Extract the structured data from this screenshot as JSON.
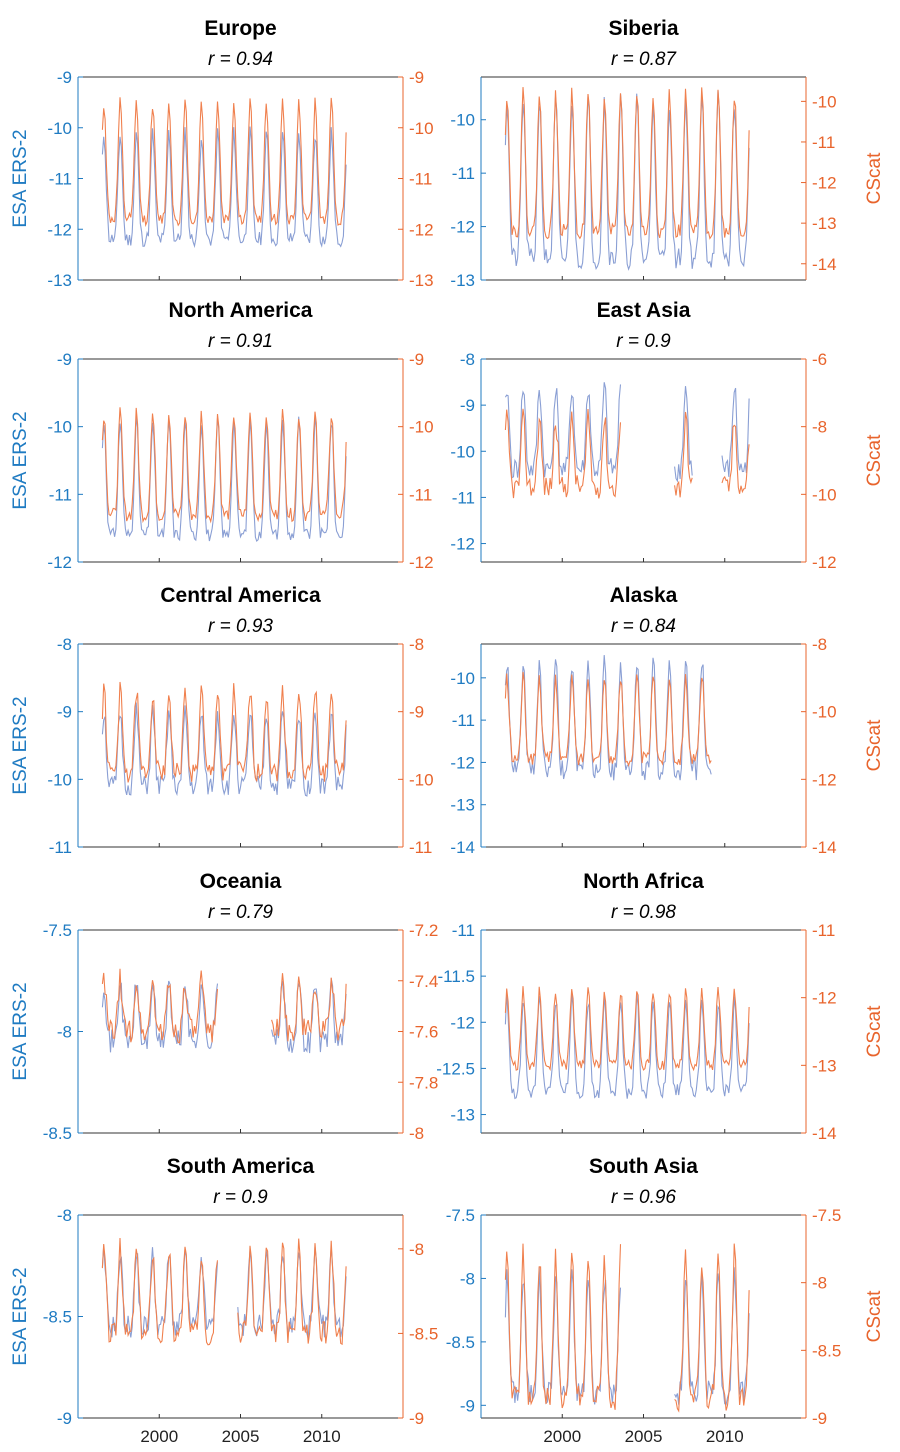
{
  "figure": {
    "left_color": "#1f7bc2",
    "right_color": "#e8642c",
    "esa_line_color": "#8a9fd4",
    "cscat_line_color": "#f0804e",
    "x_tick_labels": [
      "2000",
      "2005",
      "2010"
    ],
    "x_range": [
      1995,
      2015
    ]
  },
  "chart_data": [
    {
      "type": "line",
      "title": "Europe",
      "subtitle": "r = 0.94",
      "ylabel": "ESA ERS-2",
      "y2label": "",
      "ylim": [
        -13,
        -9
      ],
      "y2lim": [
        -13,
        -9
      ],
      "yticks": [
        -13,
        -12,
        -11,
        -10,
        -9
      ],
      "y2ticks": [
        -13,
        -12,
        -11,
        -10,
        -9
      ],
      "ytick_labels": [
        "-13",
        "-12",
        "-11",
        "-10",
        "-9"
      ],
      "y2tick_labels": [
        "-13",
        "-12",
        "-11",
        "-10",
        "-9"
      ],
      "show_xticklabels": false,
      "series": [
        {
          "axis": "left",
          "seasonal": {
            "start": 1996.5,
            "end": 2011.5,
            "low": -12.2,
            "high": -10.1,
            "noise": 0.15,
            "seed": 11
          }
        },
        {
          "axis": "right",
          "seasonal": {
            "start": 1996.5,
            "end": 2011.5,
            "low": -11.8,
            "high": -9.5,
            "noise": 0.12,
            "seed": 12
          }
        }
      ]
    },
    {
      "type": "line",
      "title": "Siberia",
      "subtitle": "r = 0.87",
      "ylabel": "",
      "y2label": "CScat",
      "ylim": [
        -13,
        -9.2
      ],
      "y2lim": [
        -14.4,
        -9.4
      ],
      "yticks": [
        -13,
        -12,
        -11,
        -10
      ],
      "y2ticks": [
        -14,
        -13,
        -12,
        -11,
        -10
      ],
      "ytick_labels": [
        "-13",
        "-12",
        "-11",
        "-10"
      ],
      "y2tick_labels": [
        "-14",
        "-13",
        "-12",
        "-11",
        "-10"
      ],
      "show_xticklabels": false,
      "series": [
        {
          "axis": "left",
          "seasonal": {
            "start": 1996.5,
            "end": 2011.5,
            "low": -12.6,
            "high": -9.6,
            "noise": 0.2,
            "seed": 21
          }
        },
        {
          "axis": "right",
          "seasonal": {
            "start": 1996.5,
            "end": 2011.5,
            "low": -13.2,
            "high": -9.8,
            "noise": 0.18,
            "seed": 22
          }
        }
      ]
    },
    {
      "type": "line",
      "title": "North America",
      "subtitle": "r = 0.91",
      "ylabel": "ESA ERS-2",
      "y2label": "",
      "ylim": [
        -12,
        -9
      ],
      "y2lim": [
        -12,
        -9
      ],
      "yticks": [
        -12,
        -11,
        -10,
        -9
      ],
      "y2ticks": [
        -12,
        -11,
        -10,
        -9
      ],
      "ytick_labels": [
        "-12",
        "-11",
        "-10",
        "-9"
      ],
      "y2tick_labels": [
        "-12",
        "-11",
        "-10",
        "-9"
      ],
      "show_xticklabels": false,
      "series": [
        {
          "axis": "left",
          "seasonal": {
            "start": 1996.5,
            "end": 2011.5,
            "low": -11.6,
            "high": -9.9,
            "noise": 0.1,
            "seed": 31
          }
        },
        {
          "axis": "right",
          "seasonal": {
            "start": 1996.5,
            "end": 2011.5,
            "low": -11.3,
            "high": -9.8,
            "noise": 0.1,
            "seed": 32
          }
        }
      ]
    },
    {
      "type": "line",
      "title": "East Asia",
      "subtitle": "r = 0.9",
      "ylabel": "",
      "y2label": "CScat",
      "ylim": [
        -12.4,
        -8
      ],
      "y2lim": [
        -12,
        -6
      ],
      "yticks": [
        -12,
        -11,
        -10,
        -9,
        -8
      ],
      "y2ticks": [
        -12,
        -10,
        -8,
        -6
      ],
      "ytick_labels": [
        "-12",
        "-11",
        "-10",
        "-9",
        "-8"
      ],
      "y2tick_labels": [
        "-12",
        "-10",
        "-8",
        "-6"
      ],
      "show_xticklabels": false,
      "series": [
        {
          "axis": "left",
          "seasonal": {
            "start": 1996.5,
            "end": 2011.5,
            "low": -10.4,
            "high": -8.6,
            "noise": 0.25,
            "seed": 41,
            "gaps": [
              [
                2003.6,
                2006.9
              ],
              [
                2008.0,
                2009.8
              ]
            ]
          }
        },
        {
          "axis": "right",
          "seasonal": {
            "start": 1996.5,
            "end": 2011.5,
            "low": -9.8,
            "high": -7.8,
            "noise": 0.35,
            "seed": 42,
            "gaps": [
              [
                2003.6,
                2006.9
              ],
              [
                2008.0,
                2009.8
              ]
            ]
          }
        }
      ]
    },
    {
      "type": "line",
      "title": "Central America",
      "subtitle": "r = 0.93",
      "ylabel": "ESA ERS-2",
      "y2label": "",
      "ylim": [
        -11,
        -8
      ],
      "y2lim": [
        -11,
        -8
      ],
      "yticks": [
        -11,
        -10,
        -9,
        -8
      ],
      "y2ticks": [
        -11,
        -10,
        -9,
        -8
      ],
      "ytick_labels": [
        "-11",
        "-10",
        "-9",
        "-8"
      ],
      "y2tick_labels": [
        "-11",
        "-10",
        "-9",
        "-8"
      ],
      "show_xticklabels": false,
      "series": [
        {
          "axis": "left",
          "seasonal": {
            "start": 1996.5,
            "end": 2011.5,
            "low": -10.1,
            "high": -9.0,
            "noise": 0.15,
            "seed": 51
          }
        },
        {
          "axis": "right",
          "seasonal": {
            "start": 1996.5,
            "end": 2011.5,
            "low": -9.9,
            "high": -8.7,
            "noise": 0.15,
            "seed": 52
          }
        }
      ]
    },
    {
      "type": "line",
      "title": "Alaska",
      "subtitle": "r = 0.84",
      "ylabel": "",
      "y2label": "CScat",
      "ylim": [
        -14,
        -9.2
      ],
      "y2lim": [
        -14,
        -8
      ],
      "yticks": [
        -14,
        -13,
        -12,
        -11,
        -10
      ],
      "y2ticks": [
        -14,
        -12,
        -10,
        -8
      ],
      "ytick_labels": [
        "-14",
        "-13",
        "-12",
        "-11",
        "-10"
      ],
      "y2tick_labels": [
        "-14",
        "-12",
        "-10",
        "-8"
      ],
      "show_xticklabels": false,
      "series": [
        {
          "axis": "left",
          "seasonal": {
            "start": 1996.5,
            "end": 2009.2,
            "low": -12.2,
            "high": -9.6,
            "noise": 0.25,
            "seed": 61
          }
        },
        {
          "axis": "right",
          "seasonal": {
            "start": 1996.5,
            "end": 2009.2,
            "low": -11.4,
            "high": -9.0,
            "noise": 0.2,
            "seed": 62
          }
        }
      ]
    },
    {
      "type": "line",
      "title": "Oceania",
      "subtitle": "r = 0.79",
      "ylabel": "ESA ERS-2",
      "y2label": "",
      "ylim": [
        -8.5,
        -7.5
      ],
      "y2lim": [
        -8,
        -7.2
      ],
      "yticks": [
        -8.5,
        -8,
        -7.5
      ],
      "y2ticks": [
        -8,
        -7.8,
        -7.6,
        -7.4,
        -7.2
      ],
      "ytick_labels": [
        "-8.5",
        "-8",
        "-7.5"
      ],
      "y2tick_labels": [
        "-8",
        "-7.8",
        "-7.6",
        "-7.4",
        "-7.2"
      ],
      "show_xticklabels": false,
      "series": [
        {
          "axis": "left",
          "seasonal": {
            "start": 1996.5,
            "end": 2011.5,
            "low": -8.05,
            "high": -7.75,
            "noise": 0.06,
            "seed": 71,
            "gaps": [
              [
                2003.6,
                2006.9
              ]
            ]
          }
        },
        {
          "axis": "right",
          "seasonal": {
            "start": 1996.5,
            "end": 2011.5,
            "low": -7.6,
            "high": -7.4,
            "noise": 0.05,
            "seed": 72,
            "gaps": [
              [
                2003.6,
                2006.9
              ]
            ]
          }
        }
      ]
    },
    {
      "type": "line",
      "title": "North Africa",
      "subtitle": "r = 0.98",
      "ylabel": "",
      "y2label": "CScat",
      "ylim": [
        -13.2,
        -11
      ],
      "y2lim": [
        -14,
        -11
      ],
      "yticks": [
        -13,
        -12.5,
        -12,
        -11.5,
        -11
      ],
      "y2ticks": [
        -14,
        -13,
        -12,
        -11
      ],
      "ytick_labels": [
        "-13",
        "-12.5",
        "-12",
        "-11.5",
        "-11"
      ],
      "y2tick_labels": [
        "-14",
        "-13",
        "-12",
        "-11"
      ],
      "show_xticklabels": false,
      "series": [
        {
          "axis": "left",
          "seasonal": {
            "start": 1996.5,
            "end": 2011.5,
            "low": -12.75,
            "high": -11.75,
            "noise": 0.08,
            "seed": 81
          }
        },
        {
          "axis": "right",
          "seasonal": {
            "start": 1996.5,
            "end": 2011.5,
            "low": -13.0,
            "high": -11.9,
            "noise": 0.08,
            "seed": 82
          }
        }
      ]
    },
    {
      "type": "line",
      "title": "South America",
      "subtitle": "r = 0.9",
      "ylabel": "ESA ERS-2",
      "y2label": "",
      "ylim": [
        -9,
        -8
      ],
      "y2lim": [
        -9,
        -7.8
      ],
      "yticks": [
        -9,
        -8.5,
        -8
      ],
      "y2ticks": [
        -9,
        -8.5,
        -8
      ],
      "ytick_labels": [
        "-9",
        "-8.5",
        "-8"
      ],
      "y2tick_labels": [
        "-9",
        "-8.5",
        "-8"
      ],
      "show_xticklabels": true,
      "series": [
        {
          "axis": "left",
          "seasonal": {
            "start": 1996.5,
            "end": 2011.5,
            "low": -8.55,
            "high": -8.2,
            "noise": 0.06,
            "seed": 91,
            "gaps": [
              [
                2003.6,
                2004.8
              ]
            ]
          }
        },
        {
          "axis": "right",
          "seasonal": {
            "start": 1996.5,
            "end": 2011.5,
            "low": -8.5,
            "high": -8.0,
            "noise": 0.07,
            "seed": 92,
            "gaps": [
              [
                2003.6,
                2004.8
              ]
            ]
          }
        }
      ]
    },
    {
      "type": "line",
      "title": "South Asia",
      "subtitle": "r = 0.96",
      "ylabel": "",
      "y2label": "CScat",
      "ylim": [
        -9.1,
        -7.5
      ],
      "y2lim": [
        -9,
        -7.5
      ],
      "yticks": [
        -9,
        -8.5,
        -8,
        -7.5
      ],
      "y2ticks": [
        -9,
        -8.5,
        -8,
        -7.5
      ],
      "ytick_labels": [
        "-9",
        "-8.5",
        "-8",
        "-7.5"
      ],
      "y2tick_labels": [
        "-9",
        "-8.5",
        "-8",
        "-7.5"
      ],
      "show_xticklabels": true,
      "series": [
        {
          "axis": "left",
          "seasonal": {
            "start": 1996.5,
            "end": 2011.5,
            "low": -8.9,
            "high": -8.0,
            "noise": 0.1,
            "seed": 101,
            "gaps": [
              [
                2003.6,
                2006.9
              ]
            ]
          }
        },
        {
          "axis": "right",
          "seasonal": {
            "start": 1996.5,
            "end": 2011.5,
            "low": -8.85,
            "high": -7.8,
            "noise": 0.1,
            "seed": 102,
            "gaps": [
              [
                2003.6,
                2006.9
              ]
            ]
          }
        }
      ]
    }
  ]
}
